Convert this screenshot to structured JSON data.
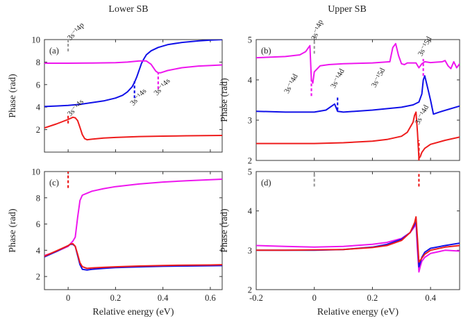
{
  "figure": {
    "col_titles": [
      "Lower SB",
      "Upper SB"
    ],
    "colors": {
      "red": "#ee1c1c",
      "blue": "#1010e8",
      "magenta": "#ee16ee",
      "gray": "#9a9a9a",
      "axis": "#333333"
    }
  },
  "chart_data": [
    {
      "type": "line",
      "panel_label": "(a)",
      "title": "Lower SB",
      "xlabel": "",
      "ylabel": "Phase (rad)",
      "xlim": [
        -0.1,
        0.65
      ],
      "ylim": [
        0,
        10
      ],
      "xticks": [
        0,
        0.2,
        0.4,
        0.6
      ],
      "xtick_labels": [
        "",
        "",
        "",
        ""
      ],
      "yticks": [
        0,
        2,
        4,
        6,
        8,
        10
      ],
      "ytick_labels": [
        "",
        "2",
        "4",
        "6",
        "8",
        "10"
      ],
      "series": [
        {
          "name": "blue",
          "color": "blue",
          "x": [
            -0.1,
            -0.05,
            0,
            0.05,
            0.1,
            0.15,
            0.2,
            0.23,
            0.25,
            0.27,
            0.28,
            0.29,
            0.3,
            0.31,
            0.32,
            0.33,
            0.35,
            0.38,
            0.42,
            0.48,
            0.55,
            0.6,
            0.65
          ],
          "y": [
            4.05,
            4.1,
            4.15,
            4.25,
            4.4,
            4.55,
            4.8,
            5.05,
            5.35,
            5.8,
            6.2,
            6.7,
            7.3,
            7.9,
            8.3,
            8.65,
            9.0,
            9.3,
            9.55,
            9.75,
            9.88,
            9.95,
            10.0
          ]
        },
        {
          "name": "magenta",
          "color": "magenta",
          "x": [
            -0.1,
            0,
            0.1,
            0.2,
            0.25,
            0.3,
            0.33,
            0.35,
            0.37,
            0.38,
            0.39,
            0.42,
            0.48,
            0.55,
            0.65
          ],
          "y": [
            7.9,
            7.9,
            7.92,
            7.95,
            8.0,
            8.1,
            8.1,
            7.8,
            7.2,
            7.05,
            7.05,
            7.25,
            7.5,
            7.65,
            7.75
          ]
        },
        {
          "name": "red",
          "color": "red",
          "x": [
            -0.1,
            -0.05,
            0,
            0.02,
            0.03,
            0.04,
            0.05,
            0.06,
            0.07,
            0.08,
            0.1,
            0.15,
            0.2,
            0.3,
            0.4,
            0.5,
            0.65
          ],
          "y": [
            2.15,
            2.5,
            2.9,
            3.1,
            3.05,
            2.8,
            2.2,
            1.55,
            1.2,
            1.1,
            1.15,
            1.25,
            1.3,
            1.38,
            1.42,
            1.45,
            1.48
          ]
        }
      ],
      "markers": [
        {
          "x": 0,
          "y0": 8.95,
          "y1": 10.1,
          "color": "gray"
        },
        {
          "x": 0,
          "y0": 2.55,
          "y1": 3.3,
          "color": "red"
        },
        {
          "x": 0.28,
          "y0": 4.8,
          "y1": 6.3,
          "color": "blue"
        },
        {
          "x": 0.38,
          "y0": 5.6,
          "y1": 7.0,
          "color": "magenta"
        }
      ],
      "annotations": [
        {
          "text": "3s⁻¹4p",
          "x": 0.01,
          "y": 9.9,
          "angle": -48
        },
        {
          "text": "3s⁻¹4s",
          "x": 0.01,
          "y": 3.15,
          "angle": -48
        },
        {
          "text": "3s⁻¹4s",
          "x": 0.275,
          "y": 4.1,
          "angle": -48
        },
        {
          "text": "3s⁻¹4s",
          "x": 0.375,
          "y": 5.0,
          "angle": -48
        }
      ]
    },
    {
      "type": "line",
      "panel_label": "(b)",
      "title": "Upper SB",
      "xlabel": "",
      "ylabel": "Phase (rad)",
      "xlim": [
        -0.2,
        0.5
      ],
      "ylim": [
        2,
        5
      ],
      "xticks": [
        -0.2,
        0,
        0.2,
        0.4
      ],
      "xtick_labels": [
        "",
        "",
        "",
        ""
      ],
      "yticks": [
        2,
        3,
        4,
        5
      ],
      "ytick_labels": [
        "2",
        "3",
        "4",
        "5"
      ],
      "series": [
        {
          "name": "magenta",
          "color": "magenta",
          "x": [
            -0.2,
            -0.1,
            -0.05,
            -0.03,
            -0.02,
            -0.015,
            -0.01,
            -0.005,
            0,
            0.02,
            0.05,
            0.1,
            0.2,
            0.26,
            0.27,
            0.28,
            0.29,
            0.3,
            0.31,
            0.32,
            0.35,
            0.36,
            0.37,
            0.38,
            0.4,
            0.42,
            0.44,
            0.45,
            0.46,
            0.47,
            0.48,
            0.49,
            0.5
          ],
          "y": [
            4.55,
            4.58,
            4.62,
            4.7,
            4.8,
            4.85,
            4.0,
            3.92,
            4.2,
            4.35,
            4.38,
            4.4,
            4.42,
            4.45,
            4.8,
            4.9,
            4.6,
            4.4,
            4.38,
            4.42,
            4.42,
            4.3,
            4.4,
            4.45,
            4.43,
            4.44,
            4.45,
            4.48,
            4.35,
            4.28,
            4.45,
            4.3,
            4.4
          ]
        },
        {
          "name": "blue",
          "color": "blue",
          "x": [
            -0.2,
            -0.1,
            0,
            0.04,
            0.06,
            0.07,
            0.08,
            0.1,
            0.2,
            0.3,
            0.34,
            0.36,
            0.37,
            0.375,
            0.38,
            0.39,
            0.4,
            0.41,
            0.43,
            0.5
          ],
          "y": [
            3.22,
            3.2,
            3.2,
            3.25,
            3.35,
            3.4,
            3.22,
            3.2,
            3.25,
            3.32,
            3.38,
            3.45,
            3.65,
            4.0,
            4.1,
            3.8,
            3.5,
            3.15,
            3.2,
            3.35
          ]
        },
        {
          "name": "red",
          "color": "red",
          "x": [
            -0.2,
            -0.1,
            0,
            0.1,
            0.2,
            0.25,
            0.3,
            0.32,
            0.34,
            0.345,
            0.35,
            0.355,
            0.36,
            0.365,
            0.37,
            0.38,
            0.4,
            0.45,
            0.5
          ],
          "y": [
            2.42,
            2.42,
            2.42,
            2.44,
            2.48,
            2.52,
            2.6,
            2.7,
            2.95,
            3.12,
            3.2,
            2.7,
            2.05,
            2.1,
            2.2,
            2.3,
            2.4,
            2.5,
            2.58
          ]
        }
      ],
      "markers": [
        {
          "x": 0,
          "y0": 4.65,
          "y1": 5.08,
          "color": "gray"
        },
        {
          "x": -0.01,
          "y0": 3.6,
          "y1": 4.05,
          "color": "magenta"
        },
        {
          "x": 0.08,
          "y0": 3.25,
          "y1": 3.58,
          "color": "blue"
        },
        {
          "x": 0.375,
          "y0": 4.1,
          "y1": 4.52,
          "color": "magenta"
        },
        {
          "x": 0.36,
          "y0": 2.0,
          "y1": 2.5,
          "color": "red"
        }
      ],
      "annotations": [
        {
          "text": "3s⁻¹4p",
          "x": 0.005,
          "y": 4.98,
          "angle": -70
        },
        {
          "text": "3s⁻¹4d",
          "x": -0.09,
          "y": 3.65,
          "angle": -62
        },
        {
          "text": "3s⁻¹4d",
          "x": 0.07,
          "y": 3.78,
          "angle": -62
        },
        {
          "text": "3s⁻¹5d",
          "x": 0.21,
          "y": 3.8,
          "angle": -62
        },
        {
          "text": "3s⁻¹5d",
          "x": 0.37,
          "y": 4.58,
          "angle": -62
        },
        {
          "text": "3s⁻¹4d",
          "x": 0.36,
          "y": 2.88,
          "angle": -62
        }
      ]
    },
    {
      "type": "line",
      "panel_label": "(c)",
      "title": "",
      "xlabel": "Relative energy (eV)",
      "ylabel": "Phase (rad)",
      "xlim": [
        -0.1,
        0.65
      ],
      "ylim": [
        1,
        10
      ],
      "xticks": [
        0,
        0.2,
        0.4,
        0.6
      ],
      "xtick_labels": [
        "0",
        "0.2",
        "0.4",
        "0.6"
      ],
      "yticks": [
        2,
        4,
        6,
        8,
        10
      ],
      "ytick_labels": [
        "2",
        "4",
        "6",
        "8",
        "10"
      ],
      "series": [
        {
          "name": "magenta",
          "color": "magenta",
          "x": [
            -0.1,
            -0.05,
            0,
            0.02,
            0.03,
            0.04,
            0.05,
            0.06,
            0.08,
            0.1,
            0.15,
            0.2,
            0.3,
            0.4,
            0.5,
            0.6,
            0.65
          ],
          "y": [
            3.6,
            3.9,
            4.3,
            4.7,
            5.0,
            6.5,
            7.8,
            8.2,
            8.35,
            8.5,
            8.7,
            8.85,
            9.05,
            9.2,
            9.3,
            9.38,
            9.42
          ]
        },
        {
          "name": "blue",
          "color": "blue",
          "x": [
            -0.1,
            -0.05,
            0,
            0.01,
            0.02,
            0.03,
            0.04,
            0.05,
            0.06,
            0.08,
            0.1,
            0.15,
            0.2,
            0.3,
            0.4,
            0.5,
            0.6,
            0.65
          ],
          "y": [
            3.5,
            3.9,
            4.35,
            4.45,
            4.45,
            4.3,
            3.6,
            2.9,
            2.55,
            2.5,
            2.55,
            2.62,
            2.68,
            2.73,
            2.78,
            2.8,
            2.82,
            2.83
          ]
        },
        {
          "name": "red",
          "color": "red",
          "x": [
            -0.1,
            -0.05,
            0,
            0.01,
            0.02,
            0.03,
            0.04,
            0.05,
            0.06,
            0.08,
            0.1,
            0.15,
            0.2,
            0.3,
            0.4,
            0.5,
            0.6,
            0.65
          ],
          "y": [
            3.55,
            3.95,
            4.35,
            4.48,
            4.5,
            4.3,
            3.7,
            3.05,
            2.75,
            2.62,
            2.65,
            2.7,
            2.74,
            2.8,
            2.84,
            2.87,
            2.88,
            2.9
          ]
        }
      ],
      "markers": [
        {
          "x": 0,
          "y0": 8.75,
          "y1": 10.0,
          "color": "red"
        }
      ],
      "annotations": []
    },
    {
      "type": "line",
      "panel_label": "(d)",
      "title": "",
      "xlabel": "Relative energy (eV)",
      "ylabel": "Phase (rad)",
      "xlim": [
        -0.2,
        0.5
      ],
      "ylim": [
        2,
        5
      ],
      "xticks": [
        -0.2,
        0,
        0.2,
        0.4
      ],
      "xtick_labels": [
        "-0.2",
        "0",
        "0.2",
        "0.4"
      ],
      "yticks": [
        2,
        3,
        4,
        5
      ],
      "ytick_labels": [
        "2",
        "3",
        "4",
        "5"
      ],
      "series": [
        {
          "name": "magenta",
          "color": "magenta",
          "x": [
            -0.2,
            -0.1,
            0,
            0.1,
            0.2,
            0.25,
            0.3,
            0.33,
            0.345,
            0.35,
            0.355,
            0.36,
            0.365,
            0.37,
            0.38,
            0.4,
            0.45,
            0.5
          ],
          "y": [
            3.12,
            3.1,
            3.08,
            3.1,
            3.15,
            3.2,
            3.3,
            3.45,
            3.6,
            3.7,
            3.0,
            2.45,
            2.6,
            2.72,
            2.82,
            2.92,
            3.0,
            2.98
          ]
        },
        {
          "name": "blue",
          "color": "blue",
          "x": [
            -0.2,
            -0.1,
            0,
            0.1,
            0.2,
            0.25,
            0.3,
            0.33,
            0.345,
            0.35,
            0.355,
            0.36,
            0.365,
            0.37,
            0.38,
            0.4,
            0.45,
            0.5
          ],
          "y": [
            3.0,
            3.0,
            3.0,
            3.02,
            3.08,
            3.15,
            3.28,
            3.45,
            3.65,
            3.78,
            3.2,
            2.58,
            2.7,
            2.82,
            2.95,
            3.05,
            3.12,
            3.18
          ]
        },
        {
          "name": "red",
          "color": "red",
          "x": [
            -0.2,
            -0.1,
            0,
            0.1,
            0.2,
            0.25,
            0.3,
            0.33,
            0.345,
            0.35,
            0.355,
            0.36,
            0.365,
            0.37,
            0.38,
            0.4,
            0.45,
            0.5
          ],
          "y": [
            3.0,
            3.0,
            3.01,
            3.02,
            3.07,
            3.12,
            3.25,
            3.45,
            3.7,
            3.85,
            3.3,
            2.7,
            2.75,
            2.8,
            2.9,
            3.0,
            3.08,
            3.12
          ]
        }
      ],
      "markers": [
        {
          "x": 0,
          "y0": 4.62,
          "y1": 5.0,
          "color": "gray"
        },
        {
          "x": 0.36,
          "y0": 4.62,
          "y1": 5.0,
          "color": "red"
        }
      ],
      "annotations": []
    }
  ]
}
